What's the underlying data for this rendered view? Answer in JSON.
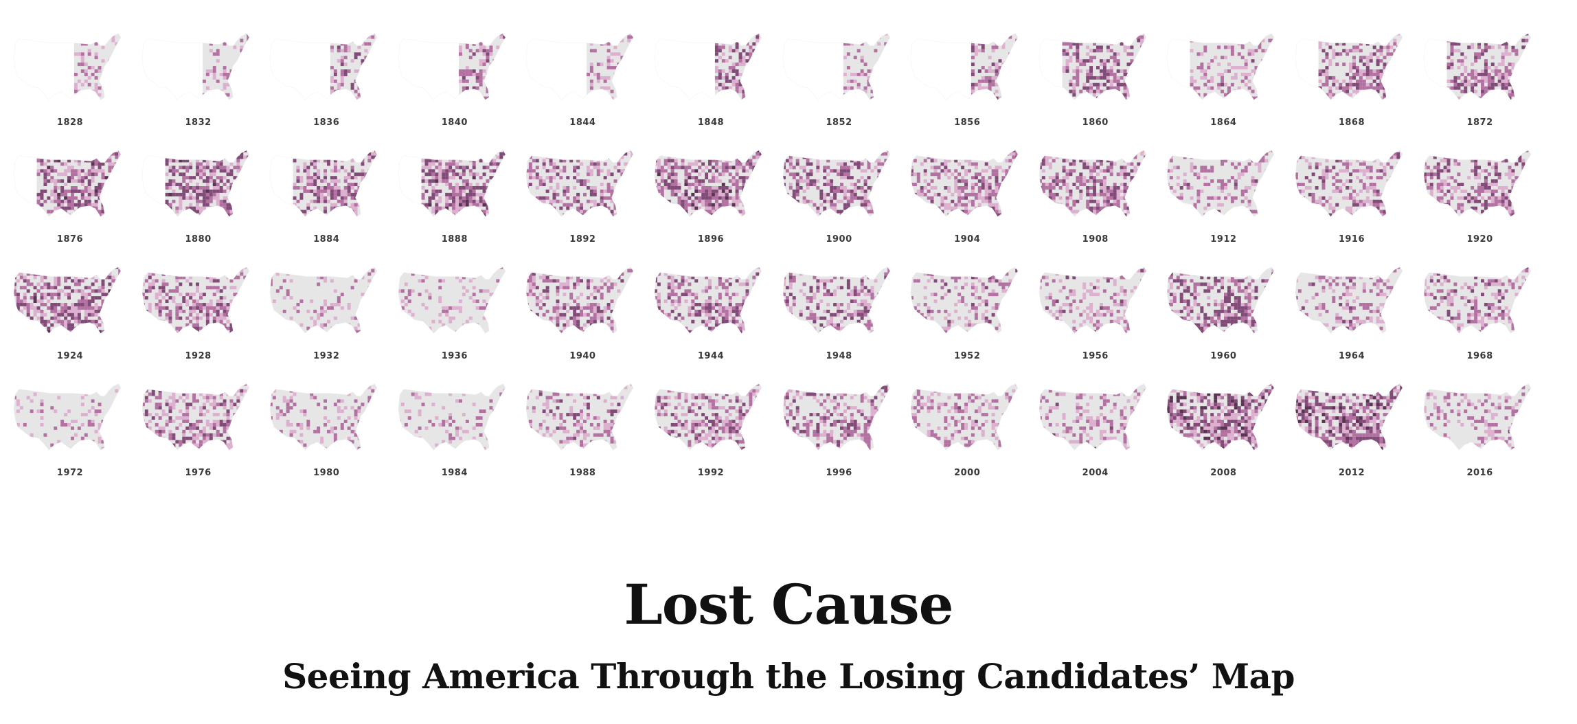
{
  "title": "Lost Cause",
  "subtitle": "Seeing America Through the Losing Candidates’ Map",
  "colors": {
    "base": "#e6e6e6",
    "light": "#d9a6c9",
    "mid": "#a85c94",
    "dark": "#6e2f63",
    "darkest": "#3f1438",
    "text": "#111111"
  },
  "maps": [
    {
      "year": "1828",
      "coverage": "east",
      "intensity": 0.35
    },
    {
      "year": "1832",
      "coverage": "east",
      "intensity": 0.3
    },
    {
      "year": "1836",
      "coverage": "east",
      "intensity": 0.45
    },
    {
      "year": "1840",
      "coverage": "east",
      "intensity": 0.45
    },
    {
      "year": "1844",
      "coverage": "east",
      "intensity": 0.3
    },
    {
      "year": "1848",
      "coverage": "east",
      "intensity": 0.55
    },
    {
      "year": "1852",
      "coverage": "east",
      "intensity": 0.3
    },
    {
      "year": "1856",
      "coverage": "east",
      "intensity": 0.5
    },
    {
      "year": "1860",
      "coverage": "partial",
      "intensity": 0.65
    },
    {
      "year": "1864",
      "coverage": "partial",
      "intensity": 0.4
    },
    {
      "year": "1868",
      "coverage": "partial",
      "intensity": 0.55
    },
    {
      "year": "1872",
      "coverage": "partial",
      "intensity": 0.55
    },
    {
      "year": "1876",
      "coverage": "partial",
      "intensity": 0.7
    },
    {
      "year": "1880",
      "coverage": "partial",
      "intensity": 0.7
    },
    {
      "year": "1884",
      "coverage": "partial",
      "intensity": 0.6
    },
    {
      "year": "1888",
      "coverage": "partial",
      "intensity": 0.7
    },
    {
      "year": "1892",
      "coverage": "full",
      "intensity": 0.55
    },
    {
      "year": "1896",
      "coverage": "full",
      "intensity": 0.75
    },
    {
      "year": "1900",
      "coverage": "full",
      "intensity": 0.65
    },
    {
      "year": "1904",
      "coverage": "full",
      "intensity": 0.55
    },
    {
      "year": "1908",
      "coverage": "full",
      "intensity": 0.6
    },
    {
      "year": "1912",
      "coverage": "full",
      "intensity": 0.4
    },
    {
      "year": "1916",
      "coverage": "full",
      "intensity": 0.45
    },
    {
      "year": "1920",
      "coverage": "full",
      "intensity": 0.55
    },
    {
      "year": "1924",
      "coverage": "full",
      "intensity": 0.7
    },
    {
      "year": "1928",
      "coverage": "full",
      "intensity": 0.55
    },
    {
      "year": "1932",
      "coverage": "full",
      "intensity": 0.2
    },
    {
      "year": "1936",
      "coverage": "full",
      "intensity": 0.2
    },
    {
      "year": "1940",
      "coverage": "full",
      "intensity": 0.5
    },
    {
      "year": "1944",
      "coverage": "full",
      "intensity": 0.55
    },
    {
      "year": "1948",
      "coverage": "full",
      "intensity": 0.5
    },
    {
      "year": "1952",
      "coverage": "full",
      "intensity": 0.4
    },
    {
      "year": "1956",
      "coverage": "full",
      "intensity": 0.4
    },
    {
      "year": "1960",
      "coverage": "full",
      "intensity": 0.65
    },
    {
      "year": "1964",
      "coverage": "full",
      "intensity": 0.4
    },
    {
      "year": "1968",
      "coverage": "full",
      "intensity": 0.45
    },
    {
      "year": "1972",
      "coverage": "full",
      "intensity": 0.15
    },
    {
      "year": "1976",
      "coverage": "full",
      "intensity": 0.55
    },
    {
      "year": "1980",
      "coverage": "full",
      "intensity": 0.3
    },
    {
      "year": "1984",
      "coverage": "full",
      "intensity": 0.2
    },
    {
      "year": "1988",
      "coverage": "full",
      "intensity": 0.4
    },
    {
      "year": "1992",
      "coverage": "full",
      "intensity": 0.5
    },
    {
      "year": "1996",
      "coverage": "full",
      "intensity": 0.5
    },
    {
      "year": "2000",
      "coverage": "full",
      "intensity": 0.35
    },
    {
      "year": "2004",
      "coverage": "full",
      "intensity": 0.35
    },
    {
      "year": "2008",
      "coverage": "full",
      "intensity": 0.8
    },
    {
      "year": "2012",
      "coverage": "full",
      "intensity": 0.8
    },
    {
      "year": "2016",
      "coverage": "full",
      "intensity": 0.35
    }
  ]
}
